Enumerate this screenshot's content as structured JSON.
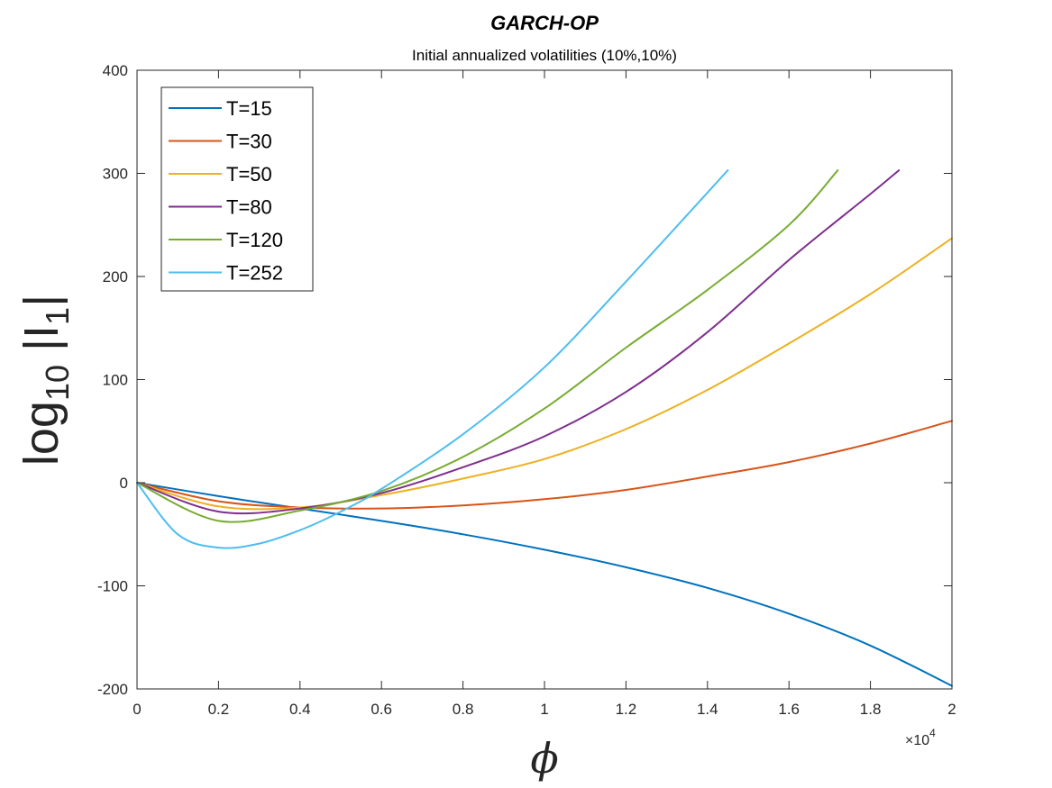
{
  "chart_data": {
    "type": "line",
    "title": "GARCH-OP",
    "subtitle": "Initial annualized volatilities (10%,10%)",
    "xlabel": "ϕ",
    "ylabel": {
      "base": "log",
      "base_sub": "10",
      "body": " |I",
      "body_sub": "1",
      "close": "|"
    },
    "x_scale_label": {
      "prefix": "×10",
      "exp": "4"
    },
    "xlim": [
      0,
      2
    ],
    "ylim": [
      -200,
      400
    ],
    "xticks": [
      0,
      0.2,
      0.4,
      0.6,
      0.8,
      1,
      1.2,
      1.4,
      1.6,
      1.8,
      2
    ],
    "xtick_labels": [
      "0",
      "0.2",
      "0.4",
      "0.6",
      "0.8",
      "1",
      "1.2",
      "1.4",
      "1.6",
      "1.8",
      "2"
    ],
    "yticks": [
      -200,
      -100,
      0,
      100,
      200,
      300,
      400
    ],
    "ytick_labels": [
      "-200",
      "-100",
      "0",
      "100",
      "200",
      "300",
      "400"
    ],
    "legend_position": "top-left",
    "series": [
      {
        "name": "T=15",
        "color": "#0072BD",
        "x": [
          0,
          0.2,
          0.4,
          0.6,
          0.8,
          1.0,
          1.2,
          1.4,
          1.6,
          1.8,
          2.0
        ],
        "y": [
          0,
          -13,
          -25,
          -37,
          -50,
          -65,
          -82,
          -102,
          -127,
          -158,
          -197
        ]
      },
      {
        "name": "T=30",
        "color": "#D95319",
        "x": [
          0,
          0.2,
          0.4,
          0.6,
          0.8,
          1.0,
          1.2,
          1.4,
          1.6,
          1.8,
          2.0
        ],
        "y": [
          0,
          -18,
          -24,
          -25,
          -22,
          -16,
          -7,
          6,
          20,
          38,
          60
        ]
      },
      {
        "name": "T=50",
        "color": "#EDB120",
        "x": [
          0,
          0.2,
          0.4,
          0.6,
          0.8,
          1.0,
          1.2,
          1.4,
          1.6,
          1.8,
          2.0
        ],
        "y": [
          0,
          -23,
          -24,
          -12,
          4,
          23,
          52,
          90,
          135,
          183,
          237
        ]
      },
      {
        "name": "T=80",
        "color": "#7E2F8E",
        "x": [
          0,
          0.2,
          0.4,
          0.6,
          0.8,
          1.0,
          1.2,
          1.4,
          1.6,
          1.8,
          1.87
        ],
        "y": [
          0,
          -28,
          -25,
          -10,
          15,
          45,
          88,
          146,
          216,
          280,
          303
        ]
      },
      {
        "name": "T=120",
        "color": "#77AC30",
        "x": [
          0,
          0.2,
          0.4,
          0.6,
          0.8,
          1.0,
          1.2,
          1.4,
          1.6,
          1.72
        ],
        "y": [
          0,
          -37,
          -27,
          -8,
          25,
          72,
          131,
          187,
          250,
          303
        ]
      },
      {
        "name": "T=252",
        "color": "#4DBEEE",
        "x": [
          0,
          0.1,
          0.2,
          0.3,
          0.4,
          0.5,
          0.6,
          0.8,
          1.0,
          1.2,
          1.45
        ],
        "y": [
          0,
          -50,
          -63,
          -59,
          -46,
          -28,
          -6,
          47,
          112,
          195,
          303
        ]
      }
    ]
  }
}
